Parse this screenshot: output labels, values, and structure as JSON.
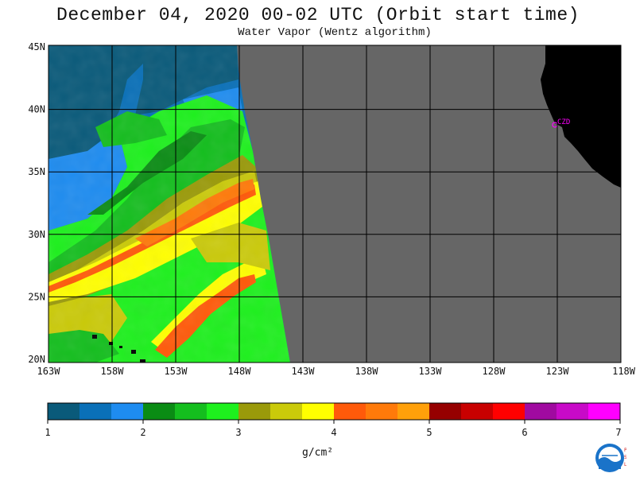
{
  "title": "December 04, 2020  00-02 UTC  (Orbit start time)",
  "subtitle": "Water Vapor (Wentz algorithm)",
  "lat_labels": [
    "45N",
    "40N",
    "35N",
    "30N",
    "25N",
    "20N"
  ],
  "lon_labels": [
    "163W",
    "158W",
    "153W",
    "148W",
    "143W",
    "138W",
    "133W",
    "128W",
    "123W",
    "118W"
  ],
  "station_label": "CZD",
  "colorbar": {
    "colors": [
      "#0a5a7a",
      "#0a70b8",
      "#1e8cf0",
      "#0a8c14",
      "#14be1e",
      "#1ef01e",
      "#9a9a0a",
      "#caca0a",
      "#ffff00",
      "#ff5a0a",
      "#ff7a0a",
      "#ffa00a",
      "#960000",
      "#c80000",
      "#ff0000",
      "#a00aa0",
      "#c80ac8",
      "#ff00ff"
    ],
    "tick_labels": [
      "1",
      "2",
      "3",
      "4",
      "5",
      "6",
      "7"
    ],
    "unit": "g/cm²"
  },
  "logo": {
    "text": "NOAA",
    "side_text": "PSL"
  },
  "colors": {
    "no_data": "#666666",
    "land": "#000000",
    "station": "#ff00ff"
  }
}
